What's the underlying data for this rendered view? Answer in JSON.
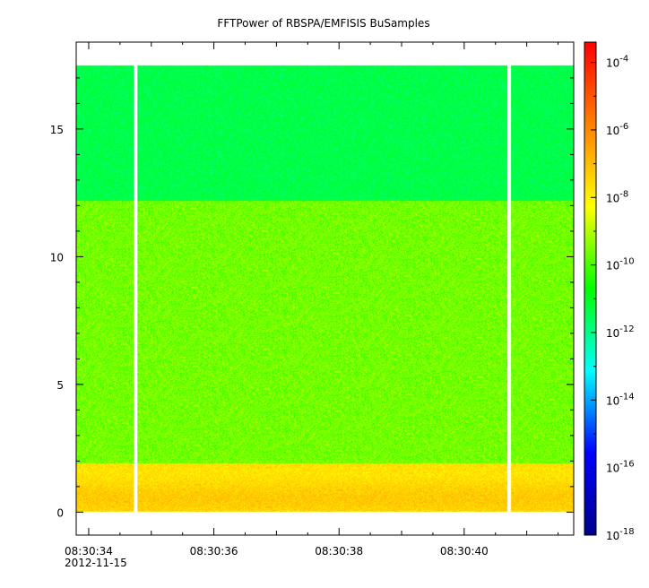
{
  "chart_data": {
    "type": "heatmap",
    "title": "FFTPower of RBSPA/EMFISIS  BuSamples",
    "xlabel": "",
    "ylabel": "",
    "x_ticks": [
      "08:30:34",
      "08:30:36",
      "08:30:38",
      "08:30:40"
    ],
    "x_tick_values_seconds": [
      34,
      36,
      38,
      40
    ],
    "x_minor_ticks_seconds": [
      35,
      37,
      39,
      41
    ],
    "x_date_label": "2012-11-15",
    "xlim_seconds": [
      33.8,
      41.75
    ],
    "y_ticks": [
      0,
      5,
      10,
      15
    ],
    "ylim": [
      -0.9,
      18.4
    ],
    "data_y_range": [
      0,
      17.5
    ],
    "gap_times_seconds": [
      34.75,
      40.72
    ],
    "bands": [
      {
        "y_from": 0,
        "y_to": 1.9,
        "log_power": -7.5,
        "variation": 0.6
      },
      {
        "y_from": 1.9,
        "y_to": 12.2,
        "log_power": -9.6,
        "variation": 0.7
      },
      {
        "y_from": 12.2,
        "y_to": 17.5,
        "log_power": -11.4,
        "variation": 0.5
      }
    ],
    "colorbar": {
      "scale": "log",
      "range_exp": [
        -18,
        -3.4
      ],
      "ticks": [
        {
          "base": "10",
          "exp": "-4",
          "value_exp": -4
        },
        {
          "base": "10",
          "exp": "-6",
          "value_exp": -6
        },
        {
          "base": "10",
          "exp": "-8",
          "value_exp": -8
        },
        {
          "base": "10",
          "exp": "-10",
          "value_exp": -10
        },
        {
          "base": "10",
          "exp": "-12",
          "value_exp": -12
        },
        {
          "base": "10",
          "exp": "-14",
          "value_exp": -14
        },
        {
          "base": "10",
          "exp": "-16",
          "value_exp": -16
        },
        {
          "base": "10",
          "exp": "-18",
          "value_exp": -18
        }
      ],
      "colors": [
        "#00008b",
        "#0000ff",
        "#00ffff",
        "#00ff00",
        "#ffff00",
        "#ff8000",
        "#ff0000"
      ]
    },
    "grid": false,
    "legend": "colorbar-right"
  }
}
